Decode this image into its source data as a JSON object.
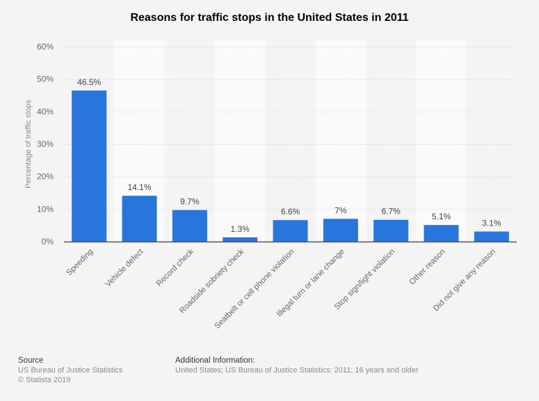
{
  "chart_data": {
    "type": "bar",
    "title": "Reasons for traffic stops in the United States in 2011",
    "xlabel": "",
    "ylabel": "Percentage of traffic stops",
    "ylim": [
      0,
      60
    ],
    "yticks": [
      0,
      10,
      20,
      30,
      40,
      50,
      60
    ],
    "ytick_labels": [
      "0%",
      "10%",
      "20%",
      "30%",
      "40%",
      "50%",
      "60%"
    ],
    "grid": true,
    "categories": [
      "Speeding",
      "Vehicle defect",
      "Record check",
      "Roadside sobriety check",
      "Seatbelt or cell phone violation",
      "Illegal turn or lane change",
      "Stop sign/light violation",
      "Other reason",
      "Did not give any reason"
    ],
    "values": [
      46.5,
      14.1,
      9.7,
      1.3,
      6.6,
      7,
      6.7,
      5.1,
      3.1
    ],
    "data_labels": [
      "46.5%",
      "14.1%",
      "9.7%",
      "1.3%",
      "6.6%",
      "7%",
      "6.7%",
      "5.1%",
      "3.1%"
    ],
    "bar_color": "#2876dd"
  },
  "footer": {
    "source_heading": "Source",
    "source_lines": [
      "US Bureau of Justice Statistics",
      "© Statista 2019"
    ],
    "info_heading": "Additional Information:",
    "info_text": "United States; US Bureau of Justice Statistics; 2011; 16 years and older"
  }
}
